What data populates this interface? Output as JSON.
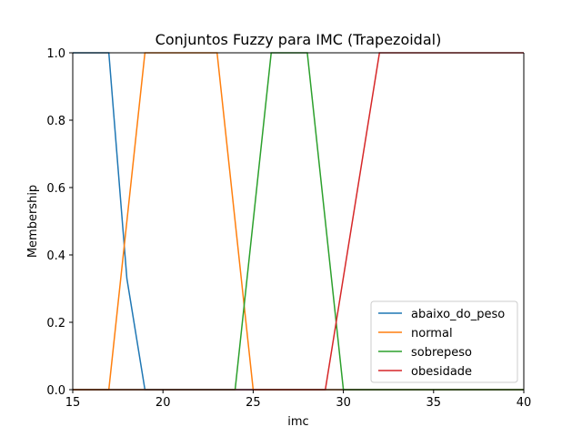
{
  "chart_data": {
    "type": "line",
    "title": "Conjuntos Fuzzy para IMC (Trapezoidal)",
    "xlabel": "imc",
    "ylabel": "Membership",
    "xlim": [
      15,
      40
    ],
    "ylim": [
      0,
      1
    ],
    "xticks": [
      "15",
      "20",
      "25",
      "30",
      "35",
      "40"
    ],
    "yticks": [
      "0.0",
      "0.2",
      "0.4",
      "0.6",
      "0.8",
      "1.0"
    ],
    "grid": false,
    "legend_position": "lower-right",
    "series": [
      {
        "name": "abaixo_do_peso",
        "color": "#1f77b4",
        "x": [
          15,
          17,
          18,
          19,
          40
        ],
        "y": [
          1,
          1,
          0.33,
          0,
          0
        ]
      },
      {
        "name": "normal",
        "color": "#ff7f0e",
        "x": [
          15,
          17,
          19,
          23,
          25,
          40
        ],
        "y": [
          0,
          0,
          1,
          1,
          0,
          0
        ]
      },
      {
        "name": "sobrepeso",
        "color": "#2ca02c",
        "x": [
          15,
          24,
          26,
          28,
          30,
          40
        ],
        "y": [
          0,
          0,
          1,
          1,
          0,
          0
        ]
      },
      {
        "name": "obesidade",
        "color": "#d62728",
        "x": [
          15,
          29,
          32,
          40
        ],
        "y": [
          0,
          0,
          1,
          1
        ]
      }
    ]
  }
}
